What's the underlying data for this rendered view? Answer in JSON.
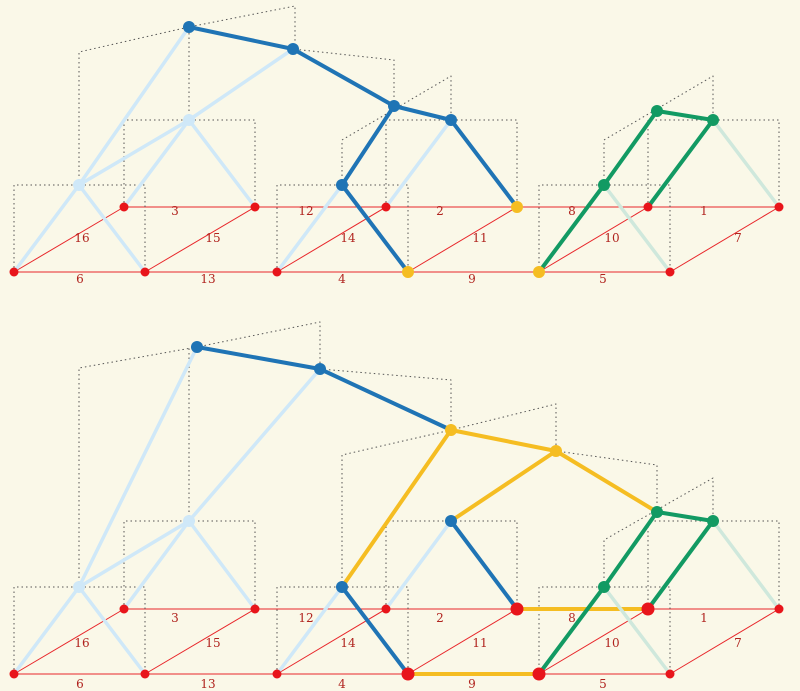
{
  "colors": {
    "background": "#faf8e8",
    "grid": "#e8262a",
    "guide": "#555555",
    "label": "#b0231e",
    "light_blue": "#cfe8f8",
    "dark_blue": "#1f74b5",
    "green": "#129a63",
    "light_green": "#cfe8dc",
    "orange": "#f5bd22",
    "red_node": "#e8151b"
  },
  "panels": [
    {
      "id": "top",
      "edge_labels": [
        "3",
        "12",
        "2",
        "8",
        "1",
        "16",
        "15",
        "14",
        "11",
        "10",
        "7",
        "6",
        "13",
        "4",
        "9",
        "5"
      ]
    },
    {
      "id": "bottom",
      "edge_labels": [
        "3",
        "12",
        "2",
        "8",
        "1",
        "16",
        "15",
        "14",
        "11",
        "10",
        "7",
        "6",
        "13",
        "4",
        "9",
        "5"
      ]
    }
  ]
}
